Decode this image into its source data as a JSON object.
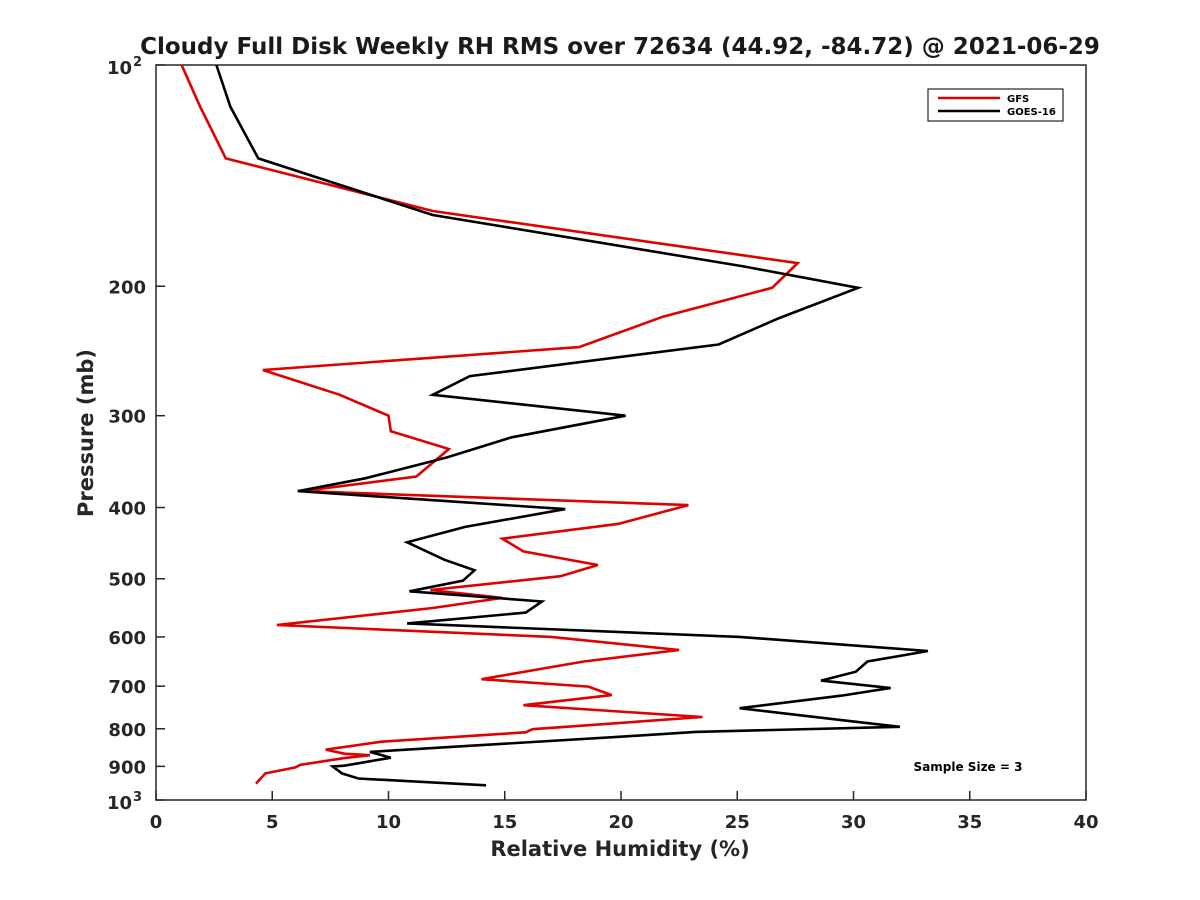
{
  "chart_data": {
    "type": "line",
    "title": "Cloudy Full Disk Weekly RH RMS over 72634 (44.92, -84.72) @ 2021-06-29",
    "xlabel": "Relative Humidity (%)",
    "ylabel": "Pressure (mb)",
    "xlim": [
      0,
      40
    ],
    "ylim": [
      100,
      1000
    ],
    "yscale": "log",
    "y_reversed": true,
    "grid": false,
    "legend_position": "top-right",
    "x_ticks": [
      "0",
      "5",
      "10",
      "15",
      "20",
      "25",
      "30",
      "35",
      "40"
    ],
    "y_ticks": [
      {
        "value": 100,
        "base": "10",
        "exp": "2"
      },
      {
        "value": 200,
        "label": "200"
      },
      {
        "value": 300,
        "label": "300"
      },
      {
        "value": 400,
        "label": "400"
      },
      {
        "value": 500,
        "label": "500"
      },
      {
        "value": 600,
        "label": "600"
      },
      {
        "value": 700,
        "label": "700"
      },
      {
        "value": 800,
        "label": "800"
      },
      {
        "value": 900,
        "label": "900"
      },
      {
        "value": 1000,
        "base": "10",
        "exp": "3"
      }
    ],
    "annotation": "Sample Size = 3",
    "series": [
      {
        "name": "GFS",
        "color": "#e00000",
        "points": [
          [
            1.1,
            100
          ],
          [
            1.9,
            114
          ],
          [
            3.0,
            134
          ],
          [
            11.9,
            158
          ],
          [
            27.6,
            186
          ],
          [
            26.5,
            201
          ],
          [
            21.8,
            220
          ],
          [
            18.2,
            242
          ],
          [
            4.6,
            260
          ],
          [
            7.9,
            281
          ],
          [
            10.0,
            300
          ],
          [
            10.1,
            315
          ],
          [
            12.6,
            333
          ],
          [
            11.2,
            363
          ],
          [
            6.3,
            380
          ],
          [
            22.9,
            397
          ],
          [
            19.9,
            421
          ],
          [
            14.9,
            441
          ],
          [
            15.8,
            459
          ],
          [
            19.0,
            479
          ],
          [
            17.4,
            496
          ],
          [
            11.8,
            518
          ],
          [
            14.9,
            531
          ],
          [
            11.9,
            548
          ],
          [
            5.2,
            578
          ],
          [
            17.0,
            600
          ],
          [
            22.5,
            625
          ],
          [
            18.4,
            648
          ],
          [
            14.0,
            685
          ],
          [
            18.6,
            701
          ],
          [
            19.6,
            720
          ],
          [
            15.8,
            743
          ],
          [
            23.5,
            771
          ],
          [
            16.2,
            801
          ],
          [
            15.9,
            809
          ],
          [
            9.7,
            833
          ],
          [
            7.3,
            854
          ],
          [
            8.1,
            865
          ],
          [
            9.2,
            869
          ],
          [
            8.1,
            877
          ],
          [
            6.2,
            896
          ],
          [
            6.0,
            903
          ],
          [
            4.7,
            920
          ],
          [
            4.3,
            950
          ]
        ]
      },
      {
        "name": "GOES-16",
        "color": "#000000",
        "points": [
          [
            2.6,
            100
          ],
          [
            3.2,
            114
          ],
          [
            4.4,
            134
          ],
          [
            11.9,
            160
          ],
          [
            25.3,
            188
          ],
          [
            30.2,
            201
          ],
          [
            26.8,
            221
          ],
          [
            24.2,
            240
          ],
          [
            13.5,
            265
          ],
          [
            11.9,
            281
          ],
          [
            20.2,
            300
          ],
          [
            15.3,
            321
          ],
          [
            12.5,
            342
          ],
          [
            9.0,
            365
          ],
          [
            6.1,
            380
          ],
          [
            17.6,
            402
          ],
          [
            13.3,
            425
          ],
          [
            10.8,
            446
          ],
          [
            12.4,
            471
          ],
          [
            13.7,
            487
          ],
          [
            13.2,
            503
          ],
          [
            10.9,
            520
          ],
          [
            16.6,
            537
          ],
          [
            15.9,
            556
          ],
          [
            10.8,
            575
          ],
          [
            25.1,
            600
          ],
          [
            33.2,
            627
          ],
          [
            30.6,
            648
          ],
          [
            30.1,
            669
          ],
          [
            28.6,
            688
          ],
          [
            31.6,
            704
          ],
          [
            29.5,
            721
          ],
          [
            25.1,
            750
          ],
          [
            29.7,
            780
          ],
          [
            32.0,
            795
          ],
          [
            23.2,
            808
          ],
          [
            20.0,
            820
          ],
          [
            13.2,
            845
          ],
          [
            9.2,
            860
          ],
          [
            10.1,
            876
          ],
          [
            8.1,
            898
          ],
          [
            7.6,
            900
          ],
          [
            8.0,
            920
          ],
          [
            8.7,
            935
          ],
          [
            14.2,
            955
          ]
        ]
      }
    ]
  }
}
